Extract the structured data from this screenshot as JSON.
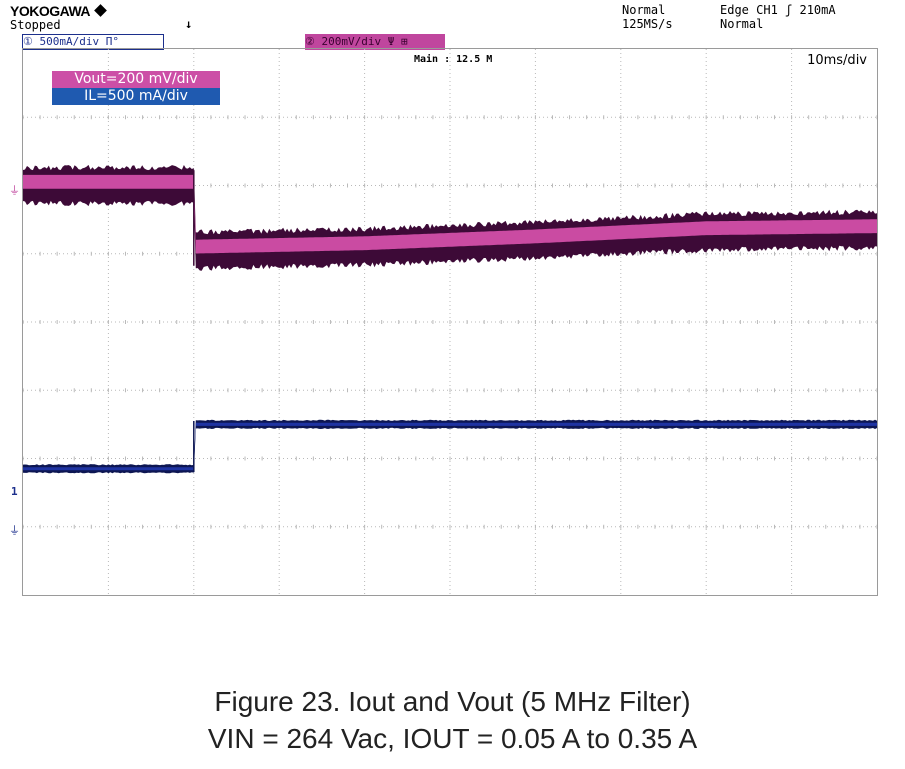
{
  "scope": {
    "brand": "YOKOGAWA",
    "status": "Stopped",
    "trigger_mode": "Normal",
    "sample_rate": "125MS/s",
    "trigger_desc": "Edge CH1 ʃ 210mA",
    "trigger_state": "Normal",
    "ch1_setting": "① 500mA/div Π°",
    "ch2_setting": "② 200mV/div Ψ ⊞",
    "main_label": "Main : 12.5 M",
    "time_per_div": "10ms/div",
    "ch2_ground_marker": "⏚",
    "ch1_level_marker": "1",
    "ch1_ground_marker": "⏚",
    "trigger_pos_marker": "↓"
  },
  "legend": {
    "vout": "Vout=200 mV/div",
    "il": "IL=500 mA/div"
  },
  "colors": {
    "vout_main": "#d24fa8",
    "vout_envelope": "#3d0a37",
    "il_main": "#2035a6",
    "il_envelope": "#0d1652",
    "grid": "#b9b9b9",
    "legend_vout_bg": "#cc4fa6",
    "legend_il_bg": "#1f5ab0"
  },
  "caption": {
    "line1": "Figure 23. Iout and Vout (5 MHz Filter)",
    "line2": "VIN = 264 Vac, IOUT = 0.05 A to 0.35 A"
  },
  "chart_data": {
    "type": "line",
    "title": "",
    "xlabel": "",
    "ylabel": "",
    "xlim": [
      0,
      100
    ],
    "ylim": [
      -4,
      4
    ],
    "x_unit": "ms",
    "grid": true,
    "legend_position": "top-left",
    "x_divisions": 10,
    "y_divisions": 8,
    "series": [
      {
        "name": "Vout=200 mV/div",
        "x": [
          0,
          20,
          20,
          40,
          60,
          80,
          100
        ],
        "y": [
          2.0,
          2.0,
          1.05,
          1.1,
          1.2,
          1.32,
          1.35
        ],
        "ripple_div": 0.45
      },
      {
        "name": "IL=500 mA/div",
        "x": [
          0,
          20,
          20,
          100
        ],
        "y": [
          -2.15,
          -2.15,
          -1.5,
          -1.5
        ],
        "ripple_div": 0.1
      }
    ]
  }
}
